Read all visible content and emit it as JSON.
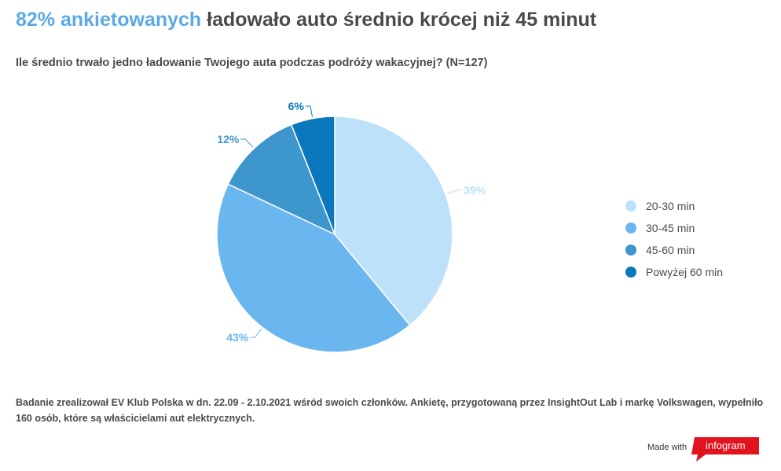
{
  "header": {
    "title_accent": "82% ankietowanych",
    "title_rest": " ładowało auto średnio krócej niż 45 minut",
    "subtitle": "Ile średnio trwało jedno ładowanie Twojego auta podczas podróży wakacyjnej? (N=127)"
  },
  "chart_data": {
    "type": "pie",
    "categories": [
      "20-30 min",
      "30-45 min",
      "45-60 min",
      "Powyżej 60 min"
    ],
    "values": [
      39,
      43,
      12,
      6
    ],
    "labels": [
      "39%",
      "43%",
      "12%",
      "6%"
    ],
    "colors": [
      "#bde1f9",
      "#6ab6ee",
      "#3d96cc",
      "#0b78bd"
    ],
    "label_colors": [
      "#bde1f9",
      "#6ab6ee",
      "#3d96cc",
      "#0b78bd"
    ],
    "legend_position": "right",
    "start_angle_deg": 0,
    "direction": "clockwise"
  },
  "footer": {
    "note": "Badanie zrealizował EV Klub Polska w dn. 22.09 - 2.10.2021 wśród swoich członków. Ankietę, przygotowaną przez InsightOut Lab i markę Volkswagen, wypełniło 160 osób, które są właścicielami aut elektrycznych.",
    "made_with": "Made with",
    "brand": "infogram",
    "brand_color": "#e0131f"
  }
}
